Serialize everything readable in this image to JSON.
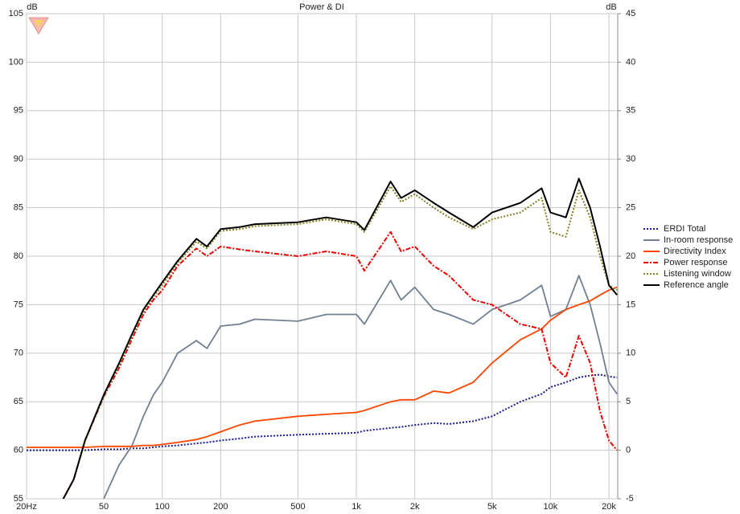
{
  "chart_data": {
    "type": "line",
    "title": "Power & DI",
    "ylabel": "dB",
    "y2label": "dB",
    "log_x": true,
    "grid": true,
    "legend": "right",
    "xlim": [
      20,
      22200
    ],
    "xticks": [
      {
        "value": 20,
        "label": "20Hz"
      },
      50,
      100,
      200,
      500,
      {
        "value": 1000,
        "label": "1k"
      },
      {
        "value": 2000,
        "label": "2k"
      },
      {
        "value": 5000,
        "label": "5k"
      },
      {
        "value": 10000,
        "label": "10k"
      },
      {
        "value": 20000,
        "label": "20k"
      }
    ],
    "ylim": [
      55,
      105
    ],
    "yticks": [
      55,
      60,
      65,
      70,
      75,
      80,
      85,
      90,
      95,
      100,
      105
    ],
    "y2lim": [
      -5,
      45
    ],
    "y2ticks": [
      -5,
      0,
      5,
      10,
      15,
      20,
      25,
      30,
      35,
      40,
      45
    ],
    "x": [
      20,
      30,
      35,
      40,
      50,
      60,
      70,
      80,
      90,
      100,
      120,
      150,
      170,
      200,
      250,
      300,
      500,
      700,
      1000,
      1100,
      1500,
      1700,
      2000,
      2500,
      3000,
      4000,
      5000,
      7000,
      9000,
      10000,
      12000,
      14000,
      16000,
      18000,
      20000,
      22000
    ],
    "series": [
      {
        "name": "ERDI Total",
        "color": "#1a1a8c",
        "style": "dotted",
        "axis": "y2",
        "values": [
          0,
          0,
          0,
          0,
          0.1,
          0.1,
          0.2,
          0.2,
          0.3,
          0.4,
          0.5,
          0.7,
          0.8,
          1,
          1.2,
          1.4,
          1.6,
          1.7,
          1.8,
          2,
          2.3,
          2.4,
          2.6,
          2.8,
          2.7,
          3,
          3.5,
          5,
          5.8,
          6.5,
          7,
          7.5,
          7.7,
          7.8,
          7.6,
          7.5
        ]
      },
      {
        "name": "In-room response",
        "color": "#708090",
        "style": "solid",
        "values": [
          null,
          null,
          null,
          null,
          55,
          58.5,
          60.5,
          63.5,
          65.7,
          67,
          70,
          71.3,
          70.5,
          72.8,
          73,
          73.5,
          73.3,
          74,
          74,
          73,
          77.5,
          75.5,
          76.8,
          74.5,
          74,
          73,
          74.5,
          75.5,
          77,
          73.8,
          74.5,
          78,
          75,
          71,
          67,
          65.8
        ]
      },
      {
        "name": "Directivity Index",
        "color": "#ff4500",
        "style": "solid",
        "axis": "y2",
        "values": [
          0.3,
          0.3,
          0.3,
          0.3,
          0.4,
          0.4,
          0.4,
          0.5,
          0.5,
          0.6,
          0.8,
          1.1,
          1.4,
          1.9,
          2.6,
          3,
          3.5,
          3.7,
          3.9,
          4.1,
          5,
          5.2,
          5.2,
          6.1,
          5.9,
          7,
          9,
          11.4,
          12.5,
          13.4,
          14.5,
          15,
          15.4,
          16,
          16.5,
          16.8
        ]
      },
      {
        "name": "Power response",
        "color": "#ee0000",
        "style": "dashdot",
        "values": [
          null,
          54.5,
          57,
          61,
          65.5,
          68.5,
          71.5,
          74,
          75.5,
          76.5,
          79,
          80.8,
          80,
          81,
          80.7,
          80.5,
          80,
          80.5,
          80,
          78.5,
          82.5,
          80.5,
          81,
          79,
          78,
          75.5,
          75,
          73,
          72.5,
          69,
          67.5,
          71.8,
          69,
          64,
          61,
          60
        ]
      },
      {
        "name": "Listening window",
        "color": "#808020",
        "style": "dotted",
        "values": [
          null,
          54.5,
          57,
          61,
          65.5,
          68.8,
          71.8,
          74.3,
          75.8,
          77,
          79.3,
          81.5,
          80.8,
          82.6,
          82.8,
          83.1,
          83.3,
          83.8,
          83.3,
          82.5,
          87.2,
          85.6,
          86.4,
          85,
          84,
          82.8,
          83.8,
          84.5,
          86,
          82.5,
          82,
          86.8,
          84,
          80,
          77,
          76.5
        ]
      },
      {
        "name": "Reference angle",
        "color": "#000000",
        "style": "solid",
        "values": [
          null,
          54.5,
          57,
          61,
          65.7,
          69,
          72,
          74.5,
          76,
          77.3,
          79.5,
          81.8,
          81,
          82.8,
          83,
          83.3,
          83.5,
          84,
          83.5,
          82.7,
          87.7,
          86,
          86.8,
          85.5,
          84.5,
          83,
          84.5,
          85.5,
          87,
          84.5,
          84,
          88,
          85,
          81,
          77,
          76
        ]
      }
    ]
  }
}
